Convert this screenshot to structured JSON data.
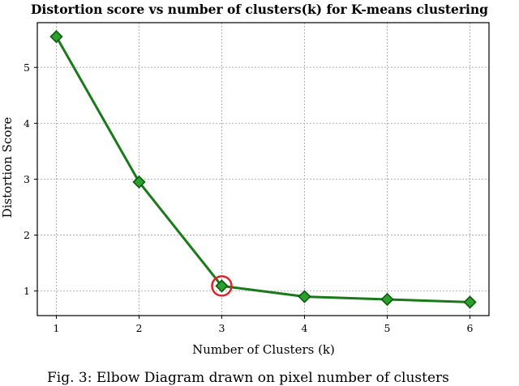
{
  "chart_data": {
    "type": "line",
    "title": "Distortion score vs number of clusters(k) for K-means clustering",
    "xlabel": "Number of Clusters (k)",
    "ylabel": "Distortion Score",
    "x": [
      1,
      2,
      3,
      4,
      5,
      6
    ],
    "series": [
      {
        "values": [
          5.55,
          2.95,
          1.09,
          0.9,
          0.85,
          0.8
        ],
        "color": "#1a7a1a"
      }
    ],
    "highlight": {
      "x": 3,
      "y": 1.09,
      "color": "#d62728"
    },
    "xticks": [
      "1",
      "2",
      "3",
      "4",
      "5",
      "6"
    ],
    "yticks": [
      "1",
      "2",
      "3",
      "4",
      "5"
    ],
    "xlim": [
      0.77,
      6.23
    ],
    "ylim": [
      0.56,
      5.8
    ],
    "grid": true,
    "marker": "diamond",
    "marker_face_color": "#2ca02c",
    "marker_edge_color": "#0b5a0b"
  },
  "caption": "Fig. 3: Elbow Diagram drawn on pixel number of clusters"
}
